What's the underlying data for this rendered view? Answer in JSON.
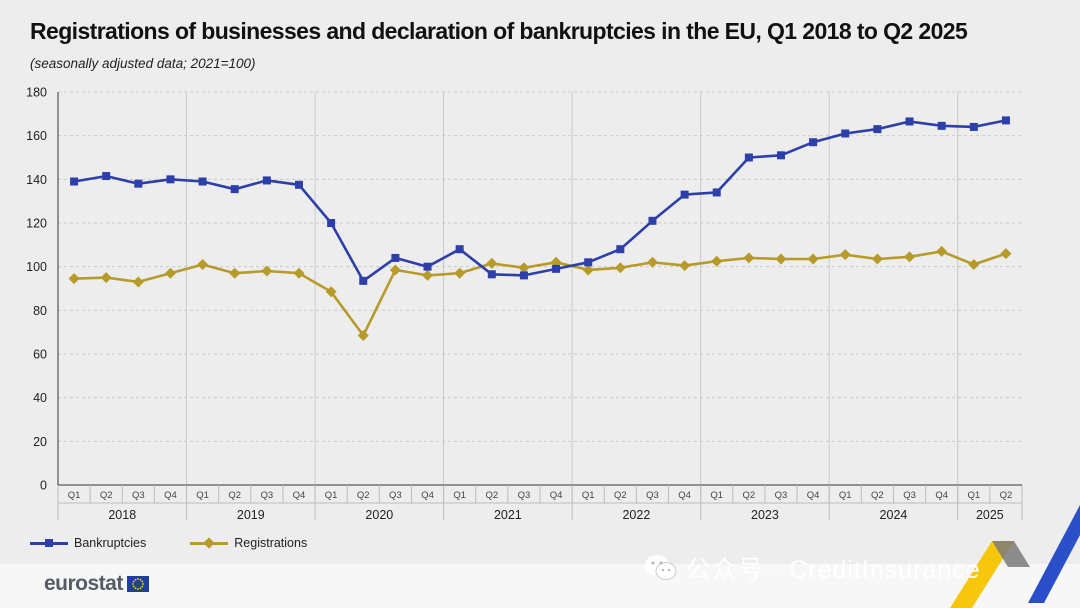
{
  "header": {
    "title": "Registrations of businesses and declaration of bankruptcies in the EU, Q1 2018 to Q2 2025",
    "subtitle": "(seasonally adjusted data; 2021=100)"
  },
  "legend": {
    "bankruptcies_label": "Bankruptcies",
    "registrations_label": "Registrations"
  },
  "footer": {
    "logo_text": "eurostat",
    "watermark_text": "公众号 · CreditInsurance"
  },
  "colors": {
    "bankruptcies": "#2d3fa8",
    "registrations": "#b69b2a",
    "grid": "#c9c9c9",
    "eu_blue": "#1f3f99",
    "eu_star": "#ffd700"
  },
  "icons": {
    "bankruptcies_marker": "square-marker-icon",
    "registrations_marker": "diamond-marker-icon",
    "eu_flag": "eu-flag-icon",
    "watermark": "wechat-icon"
  },
  "chart_data": {
    "type": "line",
    "title": "Registrations of businesses and declaration of bankruptcies in the EU, Q1 2018 to Q2 2025",
    "subtitle": "(seasonally adjusted data; 2021=100)",
    "xlabel": "",
    "ylabel": "",
    "ylim": [
      0,
      180
    ],
    "yticks": [
      0,
      20,
      40,
      60,
      80,
      100,
      120,
      140,
      160,
      180
    ],
    "grid": true,
    "legend_position": "bottom-left",
    "years": [
      "2018",
      "2019",
      "2020",
      "2021",
      "2022",
      "2023",
      "2024",
      "2025"
    ],
    "categories": [
      "Q1",
      "Q2",
      "Q3",
      "Q4",
      "Q1",
      "Q2",
      "Q3",
      "Q4",
      "Q1",
      "Q2",
      "Q3",
      "Q4",
      "Q1",
      "Q2",
      "Q3",
      "Q4",
      "Q1",
      "Q2",
      "Q3",
      "Q4",
      "Q1",
      "Q2",
      "Q3",
      "Q4",
      "Q1",
      "Q2",
      "Q3",
      "Q4",
      "Q1",
      "Q2"
    ],
    "series": [
      {
        "name": "Bankruptcies",
        "marker": "square",
        "values": [
          139,
          141.5,
          138,
          140,
          139,
          135.5,
          139.5,
          137.5,
          120,
          93.5,
          104,
          100,
          108,
          96.5,
          96,
          99,
          102,
          108,
          121,
          133,
          134,
          150,
          151,
          157,
          161,
          163,
          166.5,
          164.5,
          164,
          167
        ]
      },
      {
        "name": "Registrations",
        "marker": "diamond",
        "values": [
          94.5,
          95,
          93,
          97,
          101,
          97,
          98,
          97,
          88.5,
          68.5,
          98.5,
          96,
          97,
          101.5,
          99.5,
          102,
          98.5,
          99.5,
          102,
          100.5,
          102.5,
          104,
          103.5,
          103.5,
          105.5,
          103.5,
          104.5,
          107,
          101,
          106
        ]
      }
    ]
  }
}
